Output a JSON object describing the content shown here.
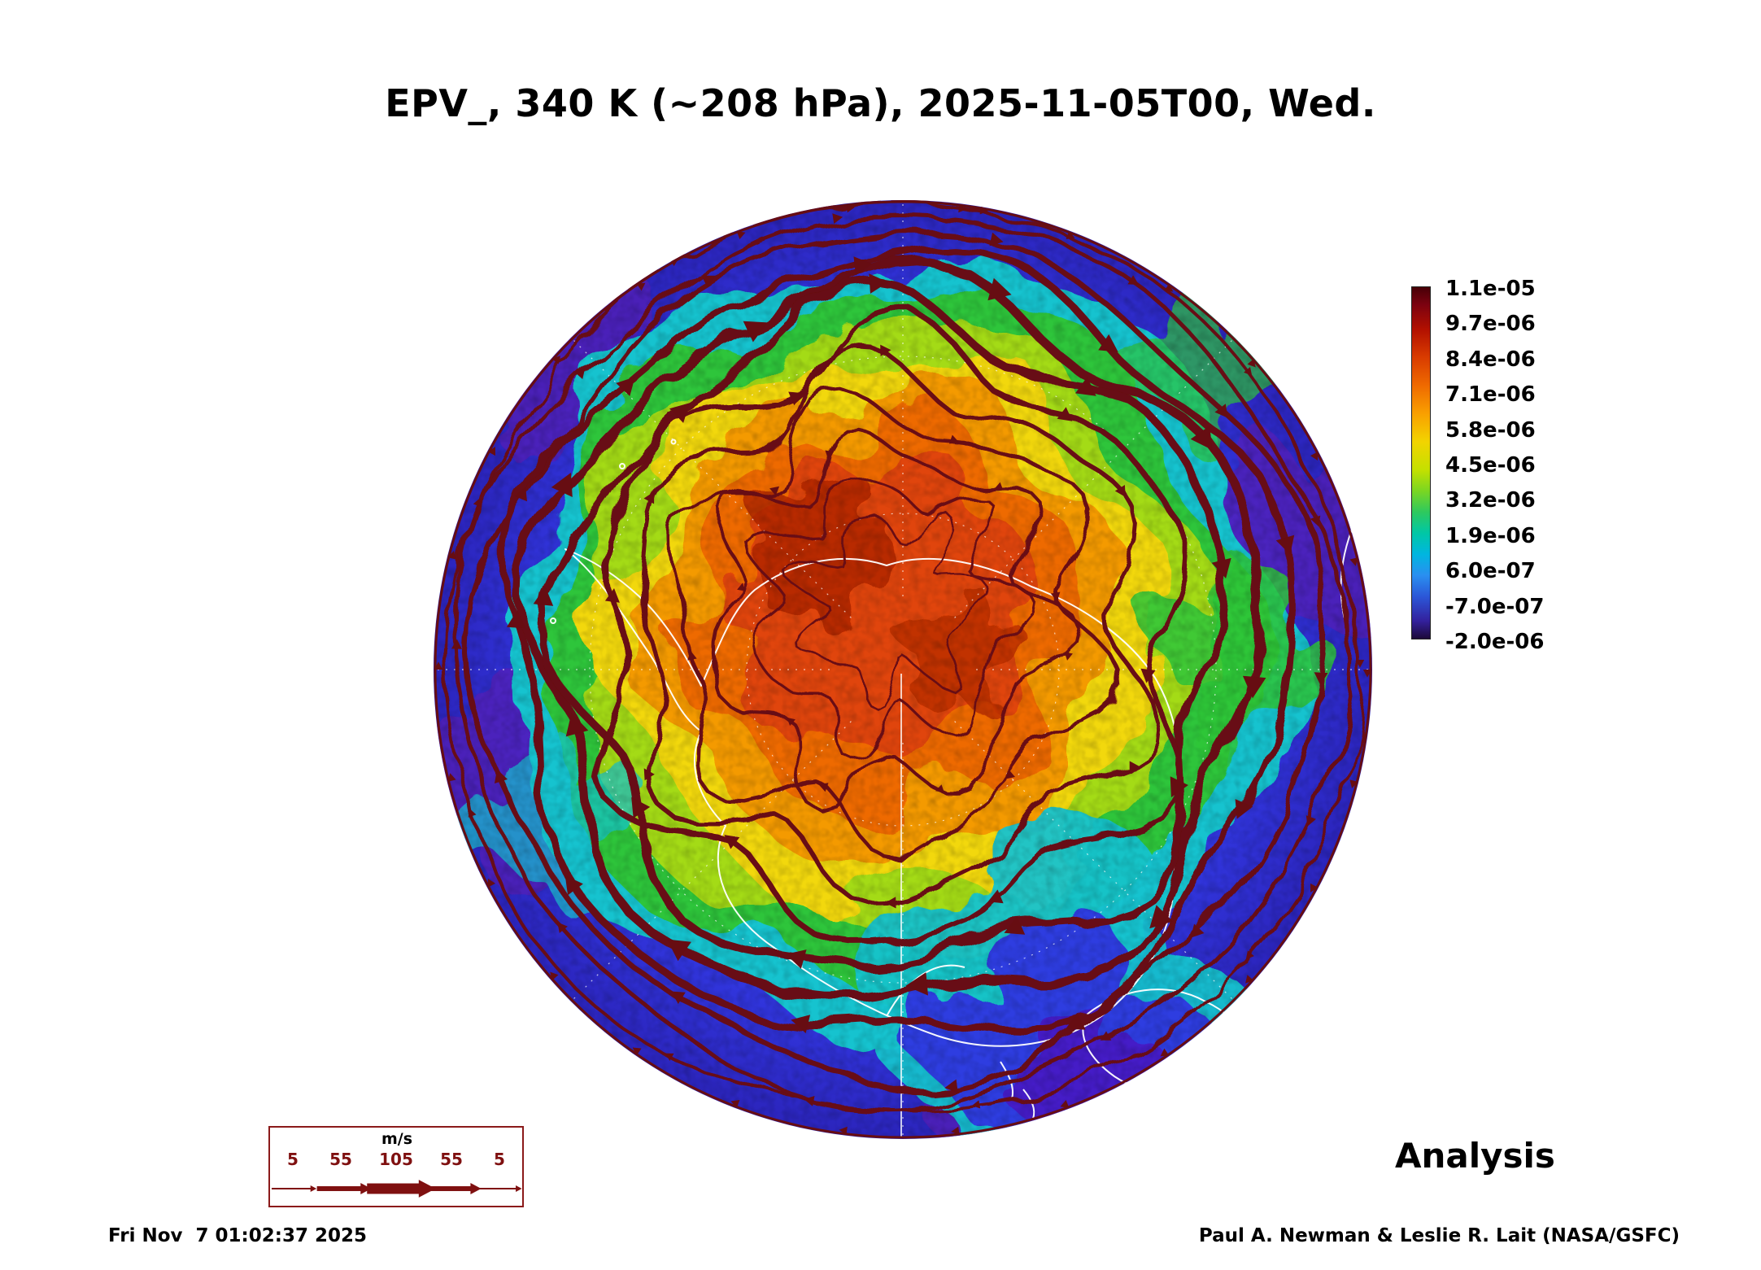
{
  "title": "EPV_, 340 K (~208 hPa), 2025-11-05T00, Wed.",
  "colorbar": {
    "labels": [
      "1.1e-05",
      "9.7e-06",
      "8.4e-06",
      "7.1e-06",
      "5.8e-06",
      "4.5e-06",
      "3.2e-06",
      "1.9e-06",
      "6.0e-07",
      "-7.0e-07",
      "-2.0e-06"
    ]
  },
  "wind_legend": {
    "units": "m/s",
    "values": [
      "5",
      "55",
      "105",
      "55",
      "5"
    ]
  },
  "analysis_label": "Analysis",
  "footer": {
    "timestamp": "Fri Nov  7 01:02:37 2025",
    "credit": "Paul A. Newman & Leslie R. Lait (NASA/GSFC)"
  },
  "chart_data": {
    "type": "heatmap",
    "title": "EPV_, 340 K (~208 hPa), 2025-11-05T00, Wed.",
    "field": "EPV (Ertel potential vorticity)",
    "level": "340 K (~208 hPa)",
    "valid_time": "2025-11-05T00",
    "valid_day": "Wed.",
    "projection": "south polar stereographic disk (Antarctica centered)",
    "colorbar_orientation": "vertical, right side, labels to right of bar",
    "colorbar_ticks": [
      1.1e-05,
      9.7e-06,
      8.4e-06,
      7.1e-06,
      5.8e-06,
      4.5e-06,
      3.2e-06,
      1.9e-06,
      6e-07,
      -7e-07,
      -2e-06
    ],
    "colorbar_colors_top_to_bottom": [
      "dark maroon",
      "red",
      "orange-red",
      "orange",
      "yellow",
      "yellow-green",
      "green",
      "teal",
      "cyan-blue",
      "blue",
      "dark purple"
    ],
    "overlays": [
      "dark-red wind streamlines with arrowheads (thickness proportional to speed)",
      "white coastlines",
      "dashed white latitude/longitude graticule"
    ],
    "wind_speed_scale_ms": [
      5,
      55,
      105,
      55,
      5
    ],
    "wind_scale_units": "m/s",
    "run_type": "Analysis",
    "generated": "Fri Nov  7 01:02:37 2025",
    "credit": "Paul A. Newman & Leslie R. Lait (NASA/GSFC)"
  }
}
